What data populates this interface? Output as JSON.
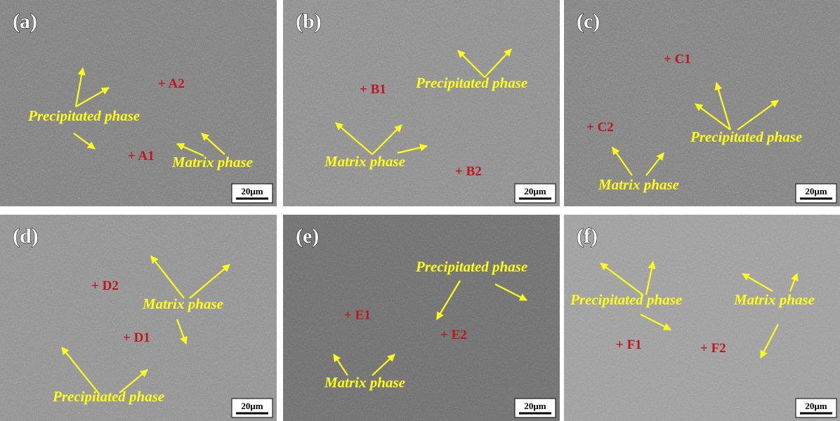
{
  "panels": [
    {
      "label": "(a)",
      "annotations": [
        "Precipitated phase",
        "Matrix phase"
      ],
      "points": [
        "+ A2",
        "+ A1"
      ],
      "scale_bar": "20μm"
    },
    {
      "label": "(b)",
      "annotations": [
        "Precipitated phase",
        "Matrix phase"
      ],
      "points": [
        "+ B1",
        "+ B2"
      ],
      "scale_bar": "20μm"
    },
    {
      "label": "(c)",
      "annotations": [
        "Precipitated phase",
        "Matrix phase"
      ],
      "points": [
        "+ C1",
        "+ C2"
      ],
      "scale_bar": "20μm"
    },
    {
      "label": "(d)",
      "annotations": [
        "Matrix phase",
        "Precipitated phase"
      ],
      "points": [
        "+ D2",
        "+ D1"
      ],
      "scale_bar": "20μm"
    },
    {
      "label": "(e)",
      "annotations": [
        "Precipitated phase",
        "Matrix phase"
      ],
      "points": [
        "+ E1",
        "+ E2"
      ],
      "scale_bar": "20μm"
    },
    {
      "label": "(f)",
      "annotations": [
        "Precipitated phase",
        "Matrix phase"
      ],
      "points": [
        "+ F1",
        "+ F2"
      ],
      "scale_bar": "20μm"
    }
  ]
}
